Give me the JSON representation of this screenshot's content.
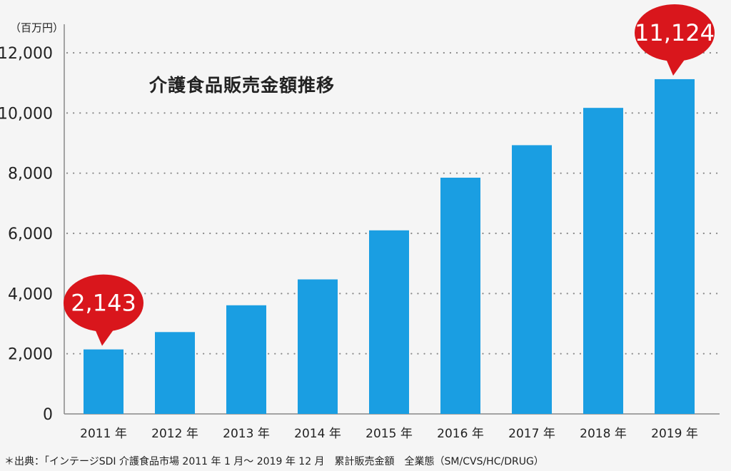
{
  "chart_data": {
    "type": "bar",
    "title": "介護食品販売金額推移",
    "unit_label": "（百万円）",
    "categories": [
      "2011 年",
      "2012 年",
      "2013 年",
      "2014 年",
      "2015 年",
      "2016 年",
      "2017 年",
      "2018 年",
      "2019 年"
    ],
    "values": [
      2143,
      2720,
      3610,
      4470,
      6100,
      7850,
      8930,
      10170,
      11124
    ],
    "ylim": [
      0,
      12000
    ],
    "yticks": [
      0,
      2000,
      4000,
      6000,
      8000,
      10000,
      12000
    ],
    "ytick_labels": [
      "0",
      "2,000",
      "4,000",
      "6,000",
      "8,000",
      "10,000",
      "12,000"
    ],
    "grid": "horizontal dotted",
    "bar_color": "#1a9ee2",
    "callouts": [
      {
        "category_index": 0,
        "label": "2,143"
      },
      {
        "category_index": 8,
        "label": "11,124"
      }
    ],
    "callout_color": "#d9161c"
  },
  "source_note": "＊出典：「インテージSDI 介護食品市場 2011 年 1 月〜 2019 年 12 月　累計販売金額　全業態（SM/CVS/HC/DRUG）"
}
